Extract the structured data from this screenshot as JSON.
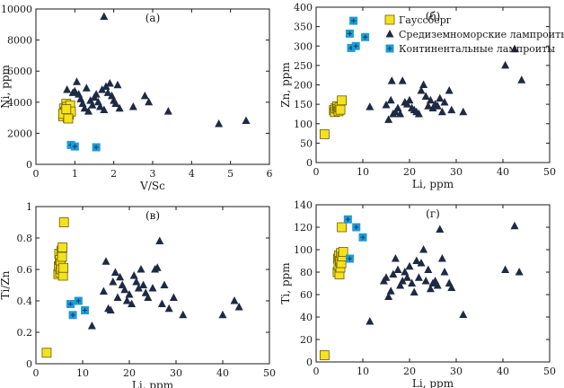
{
  "colors": {
    "gaussberg": "#F4E21E",
    "mediterranean": "#1E2A44",
    "continental": "#1E9BD6",
    "axis": "#1a1a1a"
  },
  "legend": {
    "placement": "top-right of panel (б)",
    "entries": [
      {
        "label": "Гауссберг",
        "series": "gaussberg",
        "marker": "yellow-square"
      },
      {
        "label": "Средиземноморские лампроиты",
        "series": "mediterranean",
        "marker": "navy-triangle"
      },
      {
        "label": "Континентальные лампроиты",
        "series": "continental",
        "marker": "blue-cross-square"
      }
    ]
  },
  "chart_data": [
    {
      "panel": "(а)",
      "type": "scatter",
      "xlabel": "V/Sc",
      "ylabel": "Ni, ppm",
      "xlim": [
        0,
        6
      ],
      "ylim": [
        0,
        10000
      ],
      "xticks": [
        0,
        1,
        2,
        3,
        4,
        5,
        6
      ],
      "yticks": [
        0,
        2000,
        4000,
        6000,
        8000,
        10000
      ],
      "series": [
        {
          "key": "gaussberg",
          "points": [
            [
              0.7,
              3100
            ],
            [
              0.72,
              3600
            ],
            [
              0.75,
              3400
            ],
            [
              0.78,
              3900
            ],
            [
              0.8,
              3300
            ],
            [
              0.8,
              3700
            ],
            [
              0.82,
              3000
            ],
            [
              0.85,
              3500
            ],
            [
              0.85,
              3200
            ],
            [
              0.88,
              3800
            ],
            [
              0.9,
              3400
            ],
            [
              0.7,
              3250
            ],
            [
              0.78,
              3550
            ],
            [
              0.83,
              2950
            ]
          ]
        },
        {
          "key": "mediterranean",
          "points": [
            [
              0.8,
              4800
            ],
            [
              0.95,
              4600
            ],
            [
              1.0,
              4700
            ],
            [
              1.05,
              5300
            ],
            [
              1.1,
              4500
            ],
            [
              1.15,
              4200
            ],
            [
              1.2,
              3900
            ],
            [
              1.25,
              3600
            ],
            [
              1.3,
              4900
            ],
            [
              1.35,
              3400
            ],
            [
              1.4,
              4100
            ],
            [
              1.45,
              3800
            ],
            [
              1.5,
              4300
            ],
            [
              1.55,
              4500
            ],
            [
              1.6,
              4000
            ],
            [
              1.65,
              3700
            ],
            [
              1.7,
              4800
            ],
            [
              1.75,
              3500
            ],
            [
              1.8,
              5000
            ],
            [
              1.85,
              4600
            ],
            [
              1.9,
              5200
            ],
            [
              1.95,
              4400
            ],
            [
              2.0,
              4100
            ],
            [
              2.05,
              3900
            ],
            [
              2.1,
              5100
            ],
            [
              2.15,
              3600
            ],
            [
              1.75,
              9500
            ],
            [
              2.5,
              3700
            ],
            [
              2.8,
              4400
            ],
            [
              2.9,
              4000
            ],
            [
              3.4,
              3400
            ],
            [
              4.7,
              2600
            ],
            [
              5.4,
              2800
            ]
          ]
        },
        {
          "key": "continental",
          "points": [
            [
              0.9,
              1250
            ],
            [
              1.0,
              1150
            ],
            [
              1.55,
              1100
            ]
          ]
        }
      ]
    },
    {
      "panel": "(б)",
      "type": "scatter",
      "xlabel": "Li, ppm",
      "ylabel": "Zn, ppm",
      "xlim": [
        0,
        50
      ],
      "ylim": [
        0,
        400
      ],
      "xticks": [
        0,
        10,
        20,
        30,
        40,
        50
      ],
      "yticks": [
        0,
        50,
        100,
        150,
        200,
        250,
        300,
        350,
        400
      ],
      "series": [
        {
          "key": "gaussberg",
          "points": [
            [
              1.8,
              73
            ],
            [
              3.8,
              135
            ],
            [
              4.0,
              130
            ],
            [
              4.2,
              140
            ],
            [
              4.5,
              145
            ],
            [
              4.6,
              138
            ],
            [
              4.8,
              132
            ],
            [
              5.0,
              142
            ],
            [
              5.2,
              136
            ],
            [
              5.5,
              160
            ]
          ]
        },
        {
          "key": "mediterranean",
          "points": [
            [
              11.5,
              143
            ],
            [
              15,
              148
            ],
            [
              15.5,
              110
            ],
            [
              16,
              160
            ],
            [
              16.2,
              210
            ],
            [
              16.5,
              125
            ],
            [
              17,
              130
            ],
            [
              17.5,
              140
            ],
            [
              18,
              125
            ],
            [
              18.5,
              210
            ],
            [
              19,
              155
            ],
            [
              19.5,
              150
            ],
            [
              20,
              160
            ],
            [
              20.5,
              140
            ],
            [
              21,
              135
            ],
            [
              21.5,
              130
            ],
            [
              22,
              125
            ],
            [
              22.5,
              185
            ],
            [
              23,
              200
            ],
            [
              23.5,
              170
            ],
            [
              24,
              145
            ],
            [
              24.5,
              160
            ],
            [
              25,
              140
            ],
            [
              25.5,
              150
            ],
            [
              26,
              145
            ],
            [
              26.5,
              165
            ],
            [
              27,
              130
            ],
            [
              27.5,
              155
            ],
            [
              28.5,
              185
            ],
            [
              29,
              135
            ],
            [
              31.5,
              130
            ],
            [
              40.5,
              250
            ],
            [
              42.5,
              292
            ],
            [
              44,
              212
            ]
          ]
        },
        {
          "key": "continental",
          "points": [
            [
              7.2,
              332
            ],
            [
              7.5,
              295
            ],
            [
              8.0,
              365
            ],
            [
              8.5,
              300
            ],
            [
              10.5,
              323
            ]
          ]
        }
      ]
    },
    {
      "panel": "(в)",
      "type": "scatter",
      "xlabel": "Li, ppm",
      "ylabel": "Ti/Zn",
      "xlim": [
        0,
        50
      ],
      "ylim": [
        0,
        1.0
      ],
      "xticks": [
        0,
        10,
        20,
        30,
        40,
        50
      ],
      "yticks": [
        0,
        0.2,
        0.4,
        0.6,
        0.8,
        1.0
      ],
      "series": [
        {
          "key": "gaussberg",
          "points": [
            [
              2.3,
              0.07
            ],
            [
              4.8,
              0.57
            ],
            [
              4.9,
              0.62
            ],
            [
              5.0,
              0.7
            ],
            [
              5.1,
              0.66
            ],
            [
              5.2,
              0.58
            ],
            [
              5.3,
              0.64
            ],
            [
              5.4,
              0.6
            ],
            [
              5.5,
              0.72
            ],
            [
              5.6,
              0.68
            ],
            [
              5.7,
              0.74
            ],
            [
              5.8,
              0.56
            ],
            [
              5.9,
              0.61
            ],
            [
              6.0,
              0.9
            ]
          ]
        },
        {
          "key": "mediterranean",
          "points": [
            [
              12,
              0.24
            ],
            [
              14.5,
              0.46
            ],
            [
              15,
              0.65
            ],
            [
              15.5,
              0.35
            ],
            [
              16,
              0.34
            ],
            [
              16.5,
              0.52
            ],
            [
              17,
              0.58
            ],
            [
              17.5,
              0.42
            ],
            [
              18,
              0.55
            ],
            [
              18.5,
              0.5
            ],
            [
              19,
              0.47
            ],
            [
              19.5,
              0.4
            ],
            [
              20,
              0.44
            ],
            [
              20.5,
              0.38
            ],
            [
              21,
              0.56
            ],
            [
              21.5,
              0.52
            ],
            [
              22,
              0.48
            ],
            [
              22.5,
              0.6
            ],
            [
              23,
              0.5
            ],
            [
              23.5,
              0.45
            ],
            [
              24,
              0.42
            ],
            [
              25,
              0.48
            ],
            [
              25.5,
              0.6
            ],
            [
              26,
              0.61
            ],
            [
              26.5,
              0.78
            ],
            [
              27,
              0.38
            ],
            [
              27.5,
              0.5
            ],
            [
              28.5,
              0.35
            ],
            [
              29.5,
              0.42
            ],
            [
              31.5,
              0.31
            ],
            [
              40,
              0.31
            ],
            [
              42.5,
              0.4
            ],
            [
              43.5,
              0.36
            ]
          ]
        },
        {
          "key": "continental",
          "points": [
            [
              7.4,
              0.38
            ],
            [
              7.9,
              0.31
            ],
            [
              9.1,
              0.4
            ],
            [
              10.5,
              0.34
            ]
          ]
        }
      ]
    },
    {
      "panel": "(г)",
      "type": "scatter",
      "xlabel": "Li, ppm",
      "ylabel": "Ti, ppm",
      "xlim": [
        0,
        50
      ],
      "ylim": [
        0,
        140
      ],
      "xticks": [
        0,
        10,
        20,
        30,
        40,
        50
      ],
      "yticks": [
        0,
        20,
        40,
        60,
        80,
        100,
        120,
        140
      ],
      "series": [
        {
          "key": "gaussberg",
          "points": [
            [
              1.8,
              6
            ],
            [
              4.6,
              80
            ],
            [
              4.7,
              92
            ],
            [
              4.8,
              86
            ],
            [
              4.9,
              95
            ],
            [
              5.0,
              78
            ],
            [
              5.1,
              90
            ],
            [
              5.2,
              84
            ],
            [
              5.3,
              97
            ],
            [
              5.4,
              88
            ],
            [
              5.5,
              120
            ],
            [
              5.6,
              94
            ],
            [
              5.8,
              98
            ]
          ]
        },
        {
          "key": "mediterranean",
          "points": [
            [
              11.5,
              36
            ],
            [
              14.5,
              72
            ],
            [
              15,
              75
            ],
            [
              15.5,
              58
            ],
            [
              16,
              63
            ],
            [
              16.5,
              78
            ],
            [
              17,
              92
            ],
            [
              17.5,
              82
            ],
            [
              18,
              68
            ],
            [
              18.5,
              72
            ],
            [
              19,
              80
            ],
            [
              19.5,
              75
            ],
            [
              20,
              85
            ],
            [
              20.5,
              70
            ],
            [
              21,
              62
            ],
            [
              21.5,
              90
            ],
            [
              22,
              75
            ],
            [
              22.5,
              88
            ],
            [
              23,
              100
            ],
            [
              23.5,
              72
            ],
            [
              24,
              82
            ],
            [
              24.5,
              65
            ],
            [
              25,
              70
            ],
            [
              25.5,
              72
            ],
            [
              26,
              68
            ],
            [
              26.5,
              118
            ],
            [
              27,
              92
            ],
            [
              27.5,
              80
            ],
            [
              28.5,
              70
            ],
            [
              29,
              66
            ],
            [
              31.5,
              42
            ],
            [
              40.5,
              82
            ],
            [
              42.5,
              121
            ],
            [
              43.5,
              80
            ]
          ]
        },
        {
          "key": "continental",
          "points": [
            [
              6.8,
              127
            ],
            [
              7.2,
              92
            ],
            [
              8.6,
              120
            ],
            [
              10,
              111
            ]
          ]
        }
      ]
    }
  ]
}
